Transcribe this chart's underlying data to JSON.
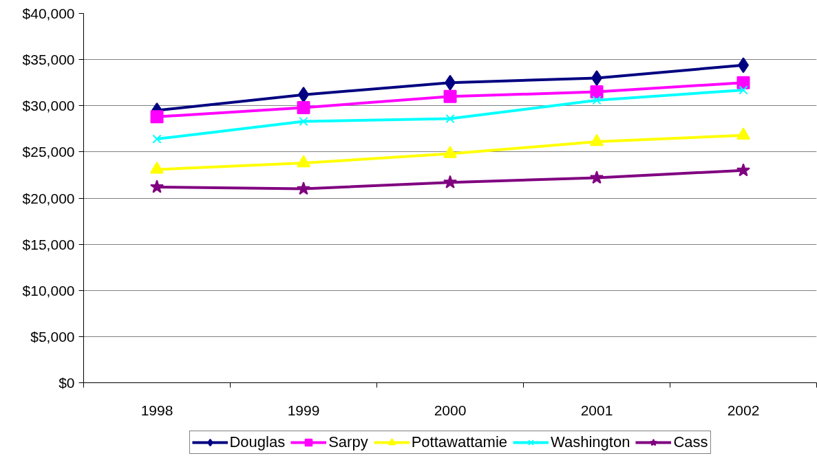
{
  "chart_data": {
    "type": "line",
    "categories": [
      "1998",
      "1999",
      "2000",
      "2001",
      "2002"
    ],
    "series": [
      {
        "name": "Douglas",
        "color": "#000080",
        "marker": "diamond",
        "values": [
          29500,
          31200,
          32500,
          33000,
          34400
        ]
      },
      {
        "name": "Sarpy",
        "color": "#ff00ff",
        "marker": "square",
        "values": [
          28800,
          29800,
          31000,
          31500,
          32500
        ]
      },
      {
        "name": "Pottawattamie",
        "color": "#ffff00",
        "marker": "triangle",
        "values": [
          23100,
          23800,
          24800,
          26100,
          26800
        ]
      },
      {
        "name": "Washington",
        "color": "#00ffff",
        "marker": "cross",
        "values": [
          26400,
          28300,
          28600,
          30600,
          31700
        ]
      },
      {
        "name": "Cass",
        "color": "#800080",
        "marker": "star",
        "values": [
          21200,
          21000,
          21700,
          22200,
          23000
        ]
      }
    ],
    "ylim": [
      0,
      40000
    ],
    "yticks": [
      {
        "value": 0,
        "label": "$0"
      },
      {
        "value": 5000,
        "label": "$5,000"
      },
      {
        "value": 10000,
        "label": "$10,000"
      },
      {
        "value": 15000,
        "label": "$15,000"
      },
      {
        "value": 20000,
        "label": "$20,000"
      },
      {
        "value": 25000,
        "label": "$25,000"
      },
      {
        "value": 30000,
        "label": "$30,000"
      },
      {
        "value": 35000,
        "label": "$35,000"
      },
      {
        "value": 40000,
        "label": "$40,000"
      }
    ],
    "grid": "y",
    "legend": "bottom"
  }
}
